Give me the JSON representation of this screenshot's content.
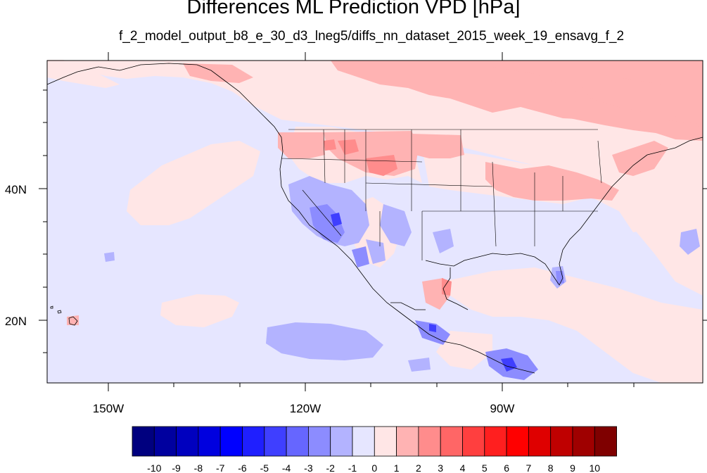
{
  "title": "Differences ML Prediction VPD [hPa]",
  "subtitle": "f_2_model_output_b8_e_30_d3_lneg5/diffs_nn_dataset_2015_week_19_ensavg_f_2",
  "map": {
    "units": "hPa",
    "x_tick_labels": [
      "150W",
      "120W",
      "90W"
    ],
    "y_tick_labels": [
      "40N",
      "20N"
    ],
    "lon_range": [
      -161,
      -62
    ],
    "lat_range": [
      10,
      59
    ]
  },
  "colorbar": {
    "labels": [
      "-10",
      "-9",
      "-8",
      "-7",
      "-6",
      "-5",
      "-4",
      "-3",
      "-2",
      "-1",
      "0",
      "1",
      "2",
      "3",
      "4",
      "5",
      "6",
      "7",
      "8",
      "9",
      "10"
    ],
    "colors": [
      "#00007f",
      "#00009f",
      "#0000bf",
      "#0000df",
      "#0000ff",
      "#1f1fff",
      "#3f3fff",
      "#6666ff",
      "#8c8cff",
      "#b3b3ff",
      "#e6e6ff",
      "#ffe6e6",
      "#ffb3b3",
      "#ff8c8c",
      "#ff6666",
      "#ff3f3f",
      "#ff1f1f",
      "#ff0000",
      "#df0000",
      "#bf0000",
      "#9f0000",
      "#7f0000"
    ]
  },
  "fields": {
    "background": "#e6e6ff",
    "light_red": "#ffe6e6",
    "medium_red": "#ffb3b3",
    "red": "#ff8c8c",
    "light_blue": "#b3b3ff",
    "blue": "#8c8cff",
    "dark_blue": "#3f3fff"
  }
}
